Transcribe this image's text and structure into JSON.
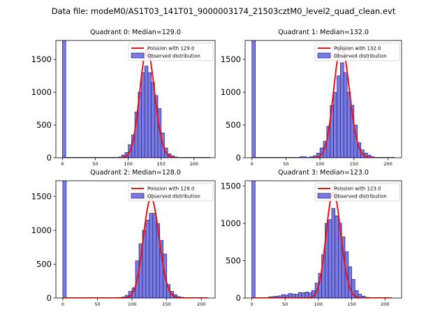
{
  "suptitle": "Data file: modeM0/AS1T03_141T01_9000003174_21503cztM0_level2_quad_clean.evt",
  "colors": {
    "bar_fill": "#7b7bdb",
    "bar_edge": "#2020a0",
    "curve": "#ee1111"
  },
  "chart_data": [
    {
      "type": "bar",
      "title": "Quadrant 0: Median=129.0",
      "median": 129.0,
      "legend": [
        "Poission with 129.0",
        "Observed distribution"
      ],
      "legend_position": "top-right",
      "xlim": [
        -10,
        232
      ],
      "ylim": [
        0,
        1790
      ],
      "xticks": [
        0,
        50,
        100,
        150,
        200
      ],
      "yticks": [
        0,
        500,
        1000,
        1500
      ],
      "bin_width": 5,
      "bins": [
        [
          0,
          1790
        ],
        [
          75,
          8
        ],
        [
          80,
          5
        ],
        [
          85,
          12
        ],
        [
          90,
          40
        ],
        [
          95,
          80
        ],
        [
          100,
          200
        ],
        [
          105,
          350
        ],
        [
          110,
          700
        ],
        [
          115,
          1000
        ],
        [
          120,
          1300
        ],
        [
          125,
          1400
        ],
        [
          130,
          1300
        ],
        [
          135,
          1150
        ],
        [
          140,
          950
        ],
        [
          145,
          750
        ],
        [
          150,
          380
        ],
        [
          155,
          150
        ],
        [
          160,
          60
        ],
        [
          165,
          30
        ],
        [
          170,
          12
        ],
        [
          175,
          5
        ]
      ],
      "curve_xrange": [
        0,
        225
      ]
    },
    {
      "type": "bar",
      "title": "Quadrant 1: Median=132.0",
      "median": 132.0,
      "legend": [
        "Poission with 132.0",
        "Observed distribution"
      ],
      "legend_position": "top-right",
      "xlim": [
        -10,
        220
      ],
      "ylim": [
        0,
        1790
      ],
      "xticks": [
        0,
        50,
        100,
        150,
        200
      ],
      "yticks": [
        0,
        500,
        1000,
        1500
      ],
      "bin_width": 5,
      "bins": [
        [
          0,
          1790
        ],
        [
          70,
          15
        ],
        [
          75,
          15
        ],
        [
          80,
          5
        ],
        [
          85,
          15
        ],
        [
          90,
          30
        ],
        [
          95,
          70
        ],
        [
          100,
          150
        ],
        [
          105,
          250
        ],
        [
          110,
          480
        ],
        [
          115,
          800
        ],
        [
          120,
          1000
        ],
        [
          125,
          1250
        ],
        [
          130,
          1450
        ],
        [
          135,
          1300
        ],
        [
          140,
          1000
        ],
        [
          145,
          800
        ],
        [
          150,
          500
        ],
        [
          155,
          230
        ],
        [
          160,
          120
        ],
        [
          165,
          70
        ],
        [
          170,
          40
        ],
        [
          175,
          15
        ],
        [
          180,
          5
        ]
      ],
      "curve_xrange": [
        0,
        210
      ]
    },
    {
      "type": "bar",
      "title": "Quadrant 2: Median=128.0",
      "median": 128.0,
      "legend": [
        "Poission with 128.0",
        "Observed distribution"
      ],
      "legend_position": "top-right",
      "xlim": [
        -10,
        220
      ],
      "ylim": [
        0,
        1730
      ],
      "xticks": [
        0,
        50,
        100,
        150,
        200
      ],
      "yticks": [
        0,
        500,
        1000,
        1500
      ],
      "bin_width": 5,
      "bins": [
        [
          0,
          1730
        ],
        [
          75,
          5
        ],
        [
          80,
          8
        ],
        [
          85,
          15
        ],
        [
          90,
          40
        ],
        [
          95,
          100
        ],
        [
          100,
          150
        ],
        [
          105,
          550
        ],
        [
          110,
          800
        ],
        [
          115,
          1000
        ],
        [
          120,
          1150
        ],
        [
          125,
          1250
        ],
        [
          130,
          1250
        ],
        [
          135,
          1100
        ],
        [
          140,
          850
        ],
        [
          145,
          650
        ],
        [
          150,
          200
        ],
        [
          155,
          100
        ],
        [
          160,
          50
        ],
        [
          165,
          20
        ],
        [
          170,
          10
        ]
      ],
      "curve_xrange": [
        0,
        210
      ]
    },
    {
      "type": "bar",
      "title": "Quadrant 3: Median=123.0",
      "median": 123.0,
      "legend": [
        "Poission with 123.0",
        "Observed distribution"
      ],
      "legend_position": "top-right",
      "xlim": [
        -10,
        225
      ],
      "ylim": [
        0,
        1570
      ],
      "xticks": [
        0,
        50,
        100,
        150,
        200
      ],
      "yticks": [
        0,
        500,
        1000,
        1500
      ],
      "bin_width": 5,
      "bins": [
        [
          0,
          1570
        ],
        [
          25,
          15
        ],
        [
          30,
          20
        ],
        [
          35,
          25
        ],
        [
          40,
          30
        ],
        [
          45,
          45
        ],
        [
          50,
          40
        ],
        [
          55,
          60
        ],
        [
          60,
          55
        ],
        [
          65,
          50
        ],
        [
          70,
          75
        ],
        [
          75,
          70
        ],
        [
          80,
          80
        ],
        [
          85,
          70
        ],
        [
          90,
          100
        ],
        [
          95,
          200
        ],
        [
          100,
          330
        ],
        [
          105,
          580
        ],
        [
          110,
          1000
        ],
        [
          115,
          1050
        ],
        [
          120,
          1200
        ],
        [
          125,
          1100
        ],
        [
          130,
          1000
        ],
        [
          135,
          820
        ],
        [
          140,
          620
        ],
        [
          145,
          420
        ],
        [
          150,
          250
        ],
        [
          155,
          100
        ],
        [
          160,
          50
        ],
        [
          165,
          25
        ],
        [
          170,
          10
        ]
      ],
      "curve_xrange": [
        0,
        210
      ]
    }
  ]
}
